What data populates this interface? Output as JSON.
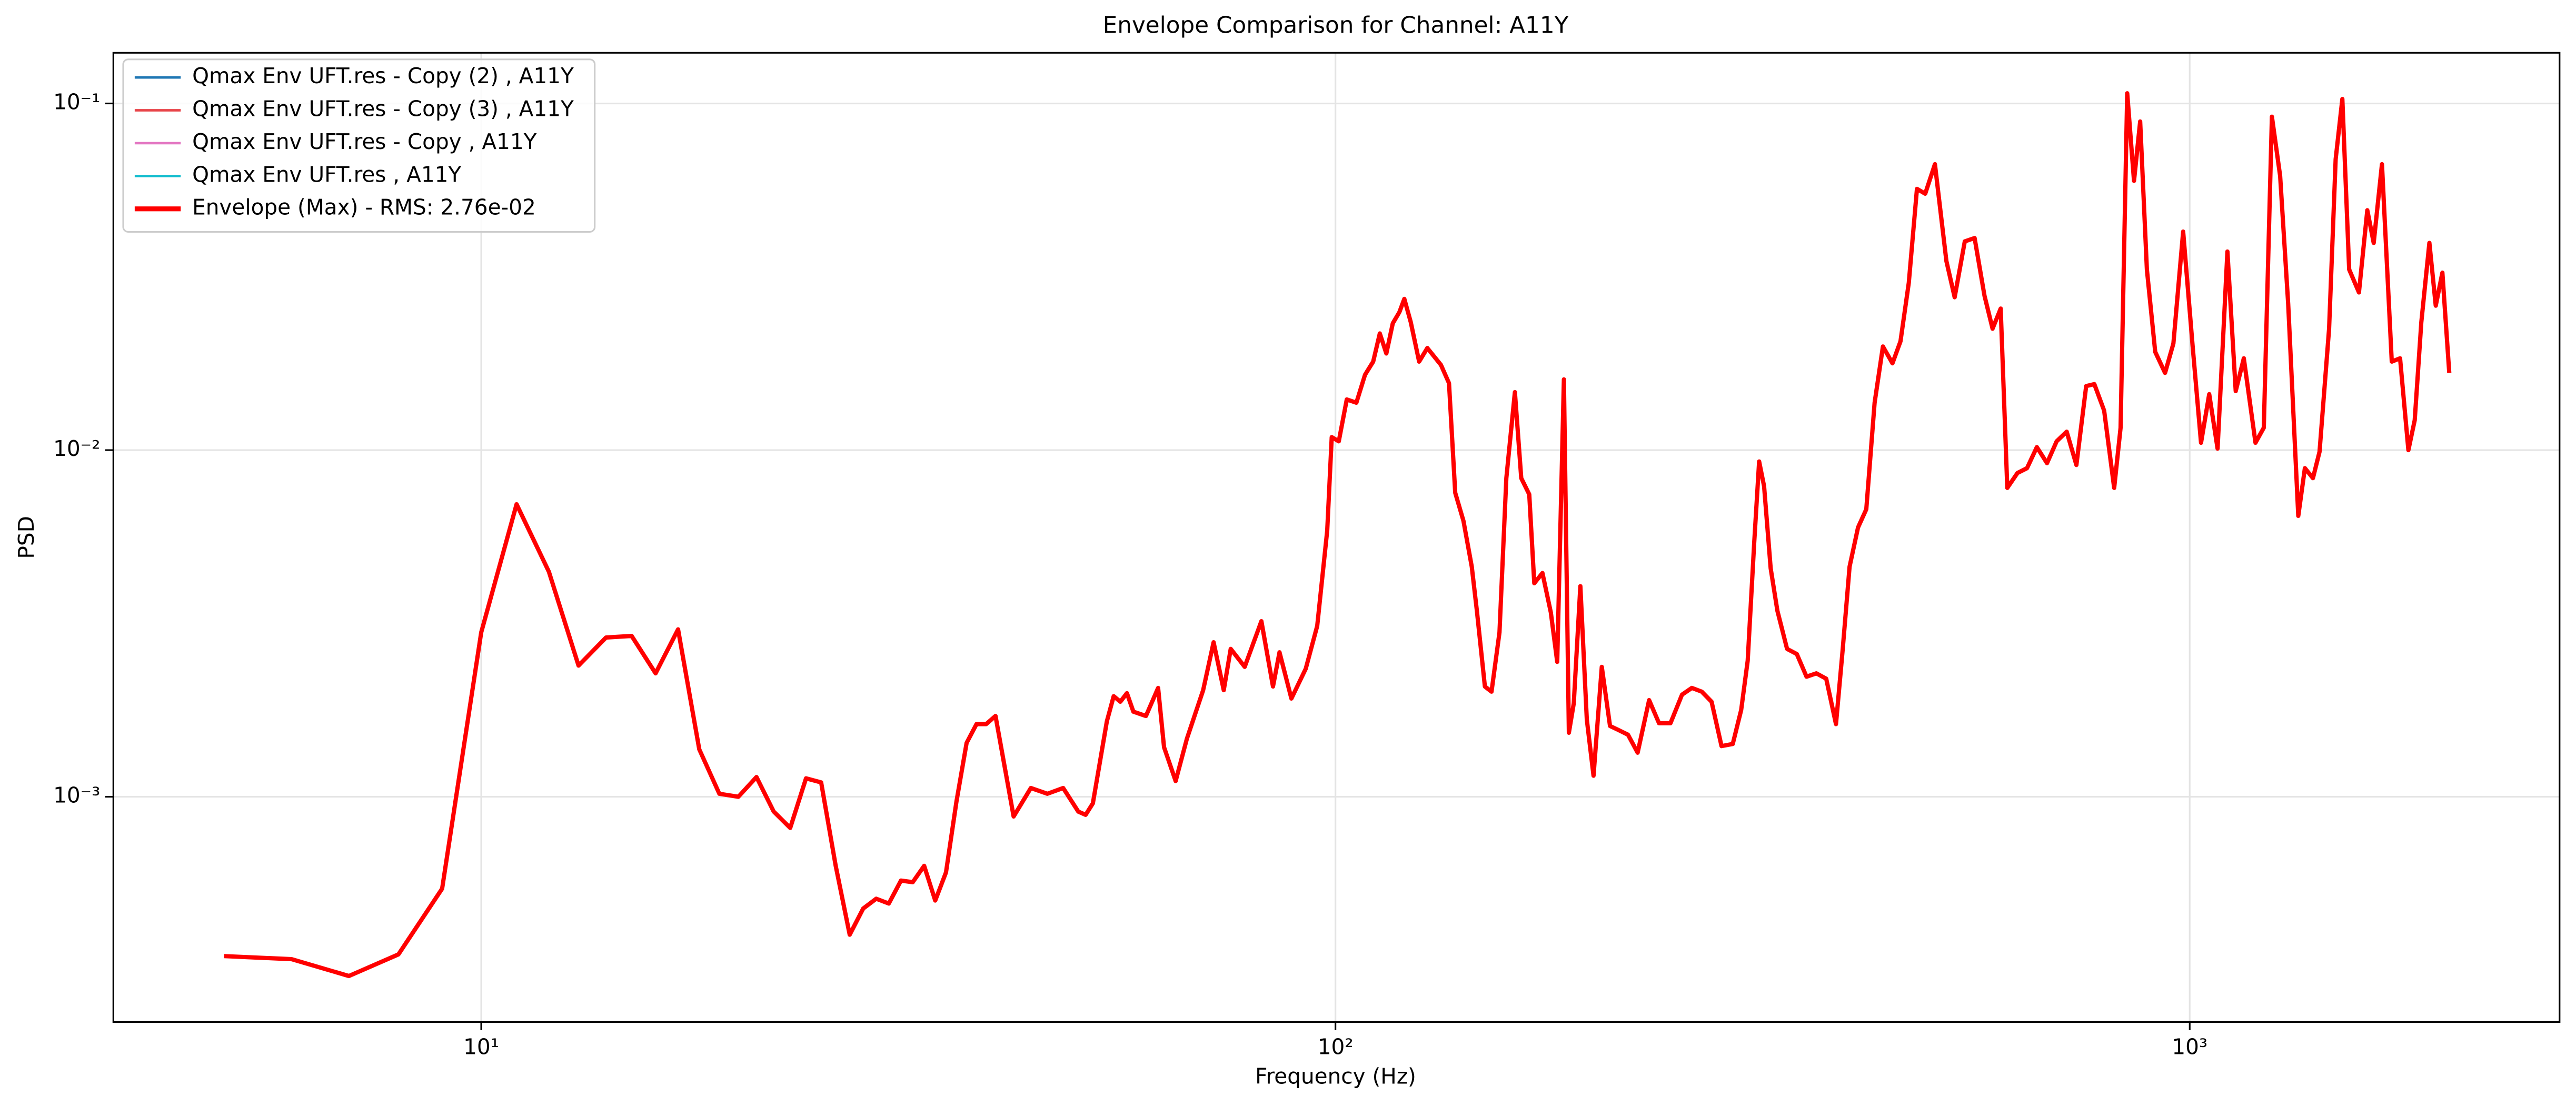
{
  "chart_data": {
    "type": "line",
    "title": "Envelope Comparison for Channel: A11Y",
    "x_label": "Frequency (Hz)",
    "y_label": "PSD",
    "xscale": "log",
    "yscale": "log",
    "grid": true,
    "legend": "upper left",
    "xlim": [
      3.71,
      2710
    ],
    "ylim": [
      0.000224,
      0.14
    ],
    "xticks": [
      {
        "value": 10,
        "label": "10¹"
      },
      {
        "value": 100,
        "label": "10²"
      },
      {
        "value": 1000,
        "label": "10³"
      }
    ],
    "yticks": [
      {
        "value": 0.001,
        "label": "10⁻³"
      },
      {
        "value": 0.01,
        "label": "10⁻²"
      },
      {
        "value": 0.1,
        "label": "10⁻¹"
      }
    ],
    "x": [
      5,
      6,
      7,
      8,
      9,
      10,
      11,
      12,
      13,
      14,
      15,
      16,
      17,
      18,
      19,
      20,
      21,
      22,
      23,
      24,
      25,
      26,
      27,
      28,
      29,
      30,
      31,
      32,
      33,
      34,
      35,
      36,
      37,
      38,
      39,
      40,
      42,
      44,
      46,
      48,
      50,
      51,
      52,
      54,
      55,
      56,
      57,
      58,
      60,
      62,
      63,
      65,
      67,
      70,
      72,
      74.0,
      75.4,
      78.3,
      81.9,
      84.5,
      86.0,
      88.8,
      92.3,
      95.2,
      97.8,
      99.0,
      100.9,
      103.1,
      105.8,
      108.3,
      110.7,
      112.7,
      114.7,
      116.7,
      118.8,
      120.4,
      122.5,
      125.3,
      128.1,
      132.9,
      135.8,
      138.1,
      141.2,
      144.4,
      146.4,
      149.6,
      152.3,
      155.6,
      158.5,
      162.2,
      165.0,
      168.6,
      170.9,
      174.7,
      178.7,
      181.8,
      185.1,
      187.6,
      190.1,
      193.5,
      196.9,
      200.5,
      205.0,
      209.6,
      214.2,
      220.0,
      225.8,
      232.9,
      239.2,
      246.7,
      254.5,
      261.3,
      268.4,
      275.6,
      283.1,
      291.8,
      298.5,
      303.8,
      309.2,
      313.3,
      317.5,
      323.2,
      329.1,
      337.8,
      346.8,
      356.0,
      365.5,
      375.4,
      385.4,
      392.5,
      399.8,
      409.0,
      418.2,
      427.7,
      437.4,
      448.8,
      458.6,
      469.0,
      479.4,
      490.2,
      503.2,
      519.0,
      530.7,
      545.4,
      560.0,
      575.1,
      587.8,
      600.8,
      611.6,
      628.6,
      645.0,
      662.3,
      680.7,
      698.6,
      717.8,
      736.8,
      756.5,
      773.3,
      794.0,
      815.8,
      830.0,
      845.0,
      860.6,
      875.0,
      891.0,
      911.2,
      935.7,
      957.0,
      982.5,
      1008,
      1031,
      1054,
      1078,
      1107,
      1132,
      1157,
      1194,
      1221,
      1248,
      1276,
      1304,
      1340,
      1364,
      1394,
      1419,
      1456,
      1482,
      1509,
      1537,
      1578,
      1614,
      1642,
      1679,
      1724,
      1763,
      1803,
      1834,
      1867,
      1908,
      1941,
      1976,
      2013
    ],
    "series": [
      {
        "name": "Qmax Env UFT.res - Copy (2) , A11Y",
        "color": "#1f77b4"
      },
      {
        "name": "Qmax Env UFT.res - Copy (3) , A11Y",
        "color": "#e8454a"
      },
      {
        "name": "Qmax Env UFT.res - Copy , A11Y",
        "color": "#e377c2"
      },
      {
        "name": "Qmax Env UFT.res , A11Y",
        "color": "#17becf"
      },
      {
        "name": "Envelope (Max) - RMS: 2.76e-02",
        "color": "#ff0000",
        "values": [
          0.000347,
          0.00034,
          0.000304,
          0.000351,
          0.000543,
          0.00298,
          0.00698,
          0.00446,
          0.00239,
          0.00288,
          0.00291,
          0.00227,
          0.00304,
          0.00137,
          0.00102,
          0.001,
          0.00114,
          0.000906,
          0.000813,
          0.00113,
          0.0011,
          0.000632,
          0.0004,
          0.000476,
          0.000508,
          0.000492,
          0.000573,
          0.000567,
          0.000632,
          0.000502,
          0.000605,
          0.000968,
          0.00143,
          0.00162,
          0.00162,
          0.00171,
          0.000877,
          0.00106,
          0.00102,
          0.00106,
          0.000906,
          0.000887,
          0.000957,
          0.00165,
          0.00195,
          0.00188,
          0.00199,
          0.00176,
          0.00171,
          0.00206,
          0.00139,
          0.00111,
          0.00147,
          0.00203,
          0.00279,
          0.00203,
          0.00267,
          0.00237,
          0.00321,
          0.00208,
          0.00261,
          0.00192,
          0.00234,
          0.00311,
          0.00586,
          0.0109,
          0.0106,
          0.014,
          0.0137,
          0.0165,
          0.018,
          0.0217,
          0.019,
          0.0232,
          0.025,
          0.0273,
          0.0234,
          0.018,
          0.0197,
          0.0176,
          0.0156,
          0.00753,
          0.00625,
          0.00461,
          0.00344,
          0.00208,
          0.00201,
          0.00298,
          0.0083,
          0.0147,
          0.0083,
          0.00745,
          0.00413,
          0.00442,
          0.0034,
          0.00245,
          0.016,
          0.00153,
          0.00186,
          0.00405,
          0.00167,
          0.00115,
          0.00237,
          0.0016,
          0.00156,
          0.00151,
          0.00134,
          0.0019,
          0.00163,
          0.00163,
          0.00197,
          0.00206,
          0.00201,
          0.00188,
          0.0014,
          0.00142,
          0.00178,
          0.00247,
          0.00543,
          0.00927,
          0.00787,
          0.00456,
          0.00344,
          0.00267,
          0.00258,
          0.00222,
          0.00227,
          0.00219,
          0.00162,
          0.00267,
          0.00461,
          0.00598,
          0.00675,
          0.0137,
          0.0199,
          0.0178,
          0.0206,
          0.0304,
          0.0567,
          0.0549,
          0.0668,
          0.0351,
          0.0276,
          0.04,
          0.0409,
          0.0279,
          0.0224,
          0.0256,
          0.00778,
          0.00859,
          0.00887,
          0.0102,
          0.00917,
          0.0106,
          0.0113,
          0.00906,
          0.0153,
          0.0155,
          0.013,
          0.00778,
          0.0116,
          0.107,
          0.0598,
          0.0887,
          0.0332,
          0.0192,
          0.0167,
          0.0203,
          0.0427,
          0.0199,
          0.0105,
          0.0145,
          0.0101,
          0.0374,
          0.0148,
          0.0184,
          0.0105,
          0.0116,
          0.0916,
          0.0618,
          0.0264,
          0.00646,
          0.00887,
          0.0083,
          0.00989,
          0.0224,
          0.069,
          0.103,
          0.0332,
          0.0285,
          0.0492,
          0.0396,
          0.0668,
          0.018,
          0.0184,
          0.01,
          0.0122,
          0.0234,
          0.0396,
          0.0261,
          0.0325,
          0.0167
        ]
      }
    ]
  }
}
